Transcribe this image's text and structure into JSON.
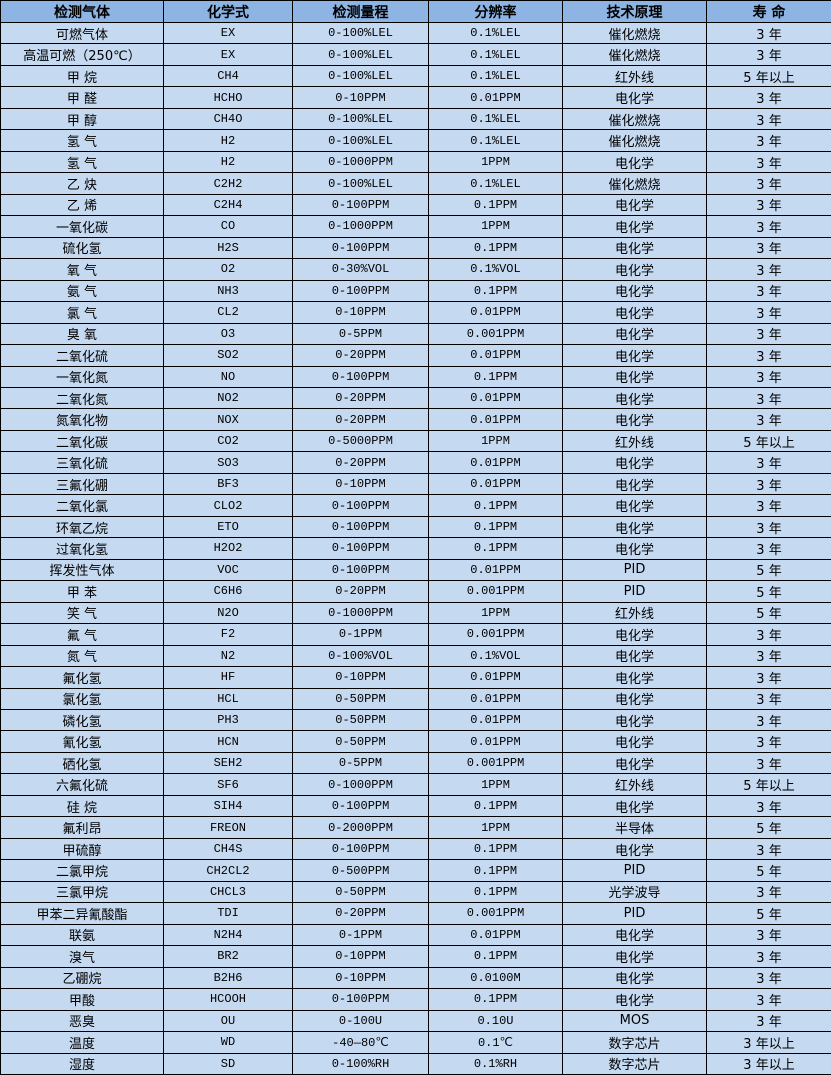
{
  "colors": {
    "header_bg": "#8db4e2",
    "row_bg": "#c5d9f1",
    "border": "#000000"
  },
  "headers": [
    "检测气体",
    "化学式",
    "检测量程",
    "分辨率",
    "技术原理",
    "寿 命"
  ],
  "rows": [
    [
      "可燃气体",
      "EX",
      "0-100%LEL",
      "0.1%LEL",
      "催化燃烧",
      "3 年"
    ],
    [
      "高温可燃（250℃）",
      "EX",
      "0-100%LEL",
      "0.1%LEL",
      "催化燃烧",
      "3 年"
    ],
    [
      "甲 烷",
      "CH4",
      "0-100%LEL",
      "0.1%LEL",
      "红外线",
      "5 年以上"
    ],
    [
      "甲 醛",
      "HCHO",
      "0-10PPM",
      "0.01PPM",
      "电化学",
      "3 年"
    ],
    [
      "甲 醇",
      "CH4O",
      "0-100%LEL",
      "0.1%LEL",
      "催化燃烧",
      "3 年"
    ],
    [
      "氢 气",
      "H2",
      "0-100%LEL",
      "0.1%LEL",
      "催化燃烧",
      "3 年"
    ],
    [
      "氢 气",
      "H2",
      "0-1000PPM",
      "1PPM",
      "电化学",
      "3 年"
    ],
    [
      "乙 炔",
      "C2H2",
      "0-100%LEL",
      "0.1%LEL",
      "催化燃烧",
      "3 年"
    ],
    [
      "乙 烯",
      "C2H4",
      "0-100PPM",
      "0.1PPM",
      "电化学",
      "3 年"
    ],
    [
      "一氧化碳",
      "CO",
      "0-1000PPM",
      "1PPM",
      "电化学",
      "3 年"
    ],
    [
      "硫化氢",
      "H2S",
      "0-100PPM",
      "0.1PPM",
      "电化学",
      "3 年"
    ],
    [
      "氧 气",
      "O2",
      "0-30%VOL",
      "0.1%VOL",
      "电化学",
      "3 年"
    ],
    [
      "氨 气",
      "NH3",
      "0-100PPM",
      "0.1PPM",
      "电化学",
      "3 年"
    ],
    [
      "氯 气",
      "CL2",
      "0-10PPM",
      "0.01PPM",
      "电化学",
      "3 年"
    ],
    [
      "臭 氧",
      "O3",
      "0-5PPM",
      "0.001PPM",
      "电化学",
      "3 年"
    ],
    [
      "二氧化硫",
      "SO2",
      "0-20PPM",
      "0.01PPM",
      "电化学",
      "3 年"
    ],
    [
      "一氧化氮",
      "NO",
      "0-100PPM",
      "0.1PPM",
      "电化学",
      "3 年"
    ],
    [
      "二氧化氮",
      "NO2",
      "0-20PPM",
      "0.01PPM",
      "电化学",
      "3 年"
    ],
    [
      "氮氧化物",
      "NOX",
      "0-20PPM",
      "0.01PPM",
      "电化学",
      "3 年"
    ],
    [
      "二氧化碳",
      "CO2",
      "0-5000PPM",
      "1PPM",
      "红外线",
      "5 年以上"
    ],
    [
      "三氧化硫",
      "SO3",
      "0-20PPM",
      "0.01PPM",
      "电化学",
      "3 年"
    ],
    [
      "三氟化硼",
      "BF3",
      "0-10PPM",
      "0.01PPM",
      "电化学",
      "3 年"
    ],
    [
      "二氧化氯",
      "CLO2",
      "0-100PPM",
      "0.1PPM",
      "电化学",
      "3 年"
    ],
    [
      "环氧乙烷",
      "ETO",
      "0-100PPM",
      "0.1PPM",
      "电化学",
      "3 年"
    ],
    [
      "过氧化氢",
      "H2O2",
      "0-100PPM",
      "0.1PPM",
      "电化学",
      "3 年"
    ],
    [
      "挥发性气体",
      "VOC",
      "0-100PPM",
      "0.01PPM",
      "PID",
      "5 年"
    ],
    [
      "甲 苯",
      "C6H6",
      "0-20PPM",
      "0.001PPM",
      "PID",
      "5 年"
    ],
    [
      "笑 气",
      "N2O",
      "0-1000PPM",
      "1PPM",
      "红外线",
      "5 年"
    ],
    [
      "氟 气",
      "F2",
      "0-1PPM",
      "0.001PPM",
      "电化学",
      "3 年"
    ],
    [
      "氮 气",
      "N2",
      "0-100%VOL",
      "0.1%VOL",
      "电化学",
      "3 年"
    ],
    [
      "氟化氢",
      "HF",
      "0-10PPM",
      "0.01PPM",
      "电化学",
      "3 年"
    ],
    [
      "氯化氢",
      "HCL",
      "0-50PPM",
      "0.01PPM",
      "电化学",
      "3 年"
    ],
    [
      "磷化氢",
      "PH3",
      "0-50PPM",
      "0.01PPM",
      "电化学",
      "3 年"
    ],
    [
      "氰化氢",
      "HCN",
      "0-50PPM",
      "0.01PPM",
      "电化学",
      "3 年"
    ],
    [
      "硒化氢",
      "SEH2",
      "0-5PPM",
      "0.001PPM",
      "电化学",
      "3 年"
    ],
    [
      "六氟化硫",
      "SF6",
      "0-1000PPM",
      "1PPM",
      "红外线",
      "5 年以上"
    ],
    [
      "硅 烷",
      "SIH4",
      "0-100PPM",
      "0.1PPM",
      "电化学",
      "3 年"
    ],
    [
      "氟利昂",
      "FREON",
      "0-2000PPM",
      "1PPM",
      "半导体",
      "5 年"
    ],
    [
      "甲硫醇",
      "CH4S",
      "0-100PPM",
      "0.1PPM",
      "电化学",
      "3 年"
    ],
    [
      "二氯甲烷",
      "CH2CL2",
      "0-500PPM",
      "0.1PPM",
      "PID",
      "5 年"
    ],
    [
      "三氯甲烷",
      "CHCL3",
      "0-50PPM",
      "0.1PPM",
      "光学波导",
      "3 年"
    ],
    [
      "甲苯二异氰酸酯",
      "TDI",
      "0-20PPM",
      "0.001PPM",
      "PID",
      "5 年"
    ],
    [
      "联氨",
      "N2H4",
      "0-1PPM",
      "0.01PPM",
      "电化学",
      "3 年"
    ],
    [
      "溴气",
      "BR2",
      "0-10PPM",
      "0.1PPM",
      "电化学",
      "3 年"
    ],
    [
      "乙硼烷",
      "B2H6",
      "0-10PPM",
      "0.0100M",
      "电化学",
      "3 年"
    ],
    [
      "甲酸",
      "HCOOH",
      "0-100PPM",
      "0.1PPM",
      "电化学",
      "3 年"
    ],
    [
      "恶臭",
      "OU",
      "0-100U",
      "0.10U",
      "MOS",
      "3 年"
    ],
    [
      "温度",
      "WD",
      "-40—80℃",
      "0.1℃",
      "数字芯片",
      "3 年以上"
    ],
    [
      "湿度",
      "SD",
      "0-100%RH",
      "0.1%RH",
      "数字芯片",
      "3 年以上"
    ]
  ]
}
